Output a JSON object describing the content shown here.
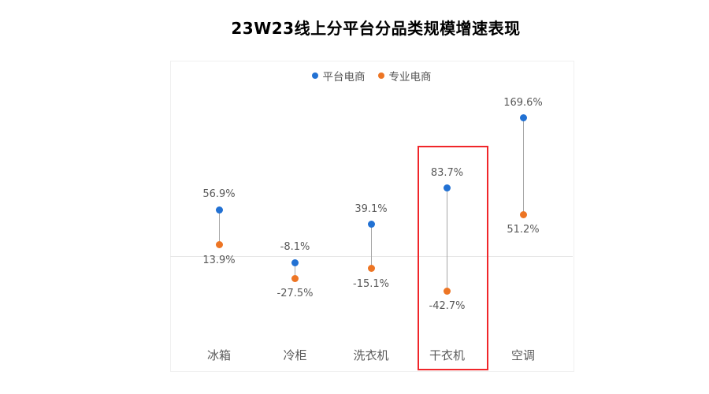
{
  "title": "23W23线上分平台分品类规模增速表现",
  "colors": {
    "series_platform": "#2271D3",
    "series_professional": "#ED7524",
    "connector_line": "#A6A6A6",
    "zero_line": "#E7E7E7",
    "plot_border": "#F0F0F0",
    "label_text": "#595959",
    "highlight_box": "#F0262A"
  },
  "chart_data": {
    "type": "scatter",
    "subtype": "dumbbell-lollipop",
    "title": "23W23线上分平台分品类规模增速表现",
    "categories": [
      "冰箱",
      "冷柜",
      "洗衣机",
      "干衣机",
      "空调"
    ],
    "series": [
      {
        "name": "平台电商",
        "color": "#2271D3",
        "values": [
          56.9,
          -8.1,
          39.1,
          83.7,
          169.6
        ],
        "labels": [
          "56.9%",
          "-8.1%",
          "39.1%",
          "83.7%",
          "169.6%"
        ]
      },
      {
        "name": "专业电商",
        "color": "#ED7524",
        "values": [
          13.9,
          -27.5,
          -15.1,
          -42.7,
          51.2
        ],
        "labels": [
          "13.9%",
          "-27.5%",
          "-15.1%",
          "-42.7%",
          "51.2%"
        ]
      }
    ],
    "xlabel": "",
    "ylabel": "",
    "ylim": [
      -60,
      200
    ],
    "zero_baseline": true,
    "grid": false,
    "legend_position": "top-center",
    "highlighted_category": "干衣机",
    "annotation": "red rectangle around 干衣机 column"
  }
}
